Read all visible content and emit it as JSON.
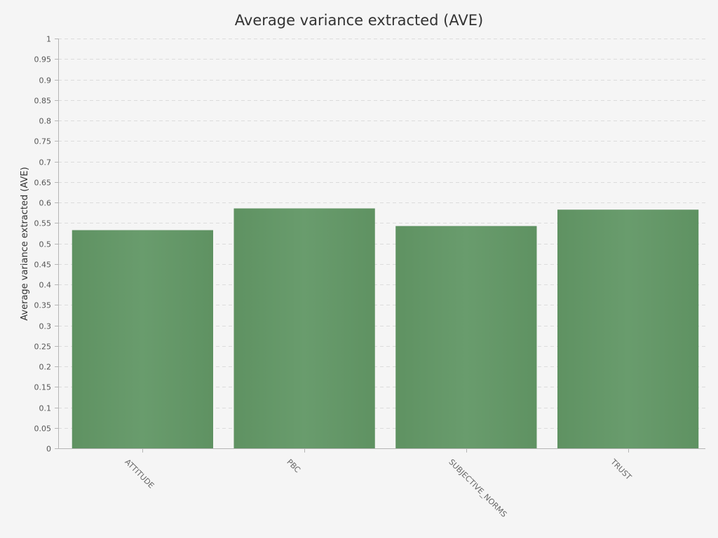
{
  "chart_data": {
    "type": "bar",
    "title": "Average variance extracted (AVE)",
    "xlabel": "",
    "ylabel": "Average variance extracted (AVE)",
    "categories": [
      "ATTITUDE",
      "PBC",
      "SUBJECTIVE_NORMS",
      "TRUST"
    ],
    "values": [
      0.532,
      0.585,
      0.542,
      0.582
    ],
    "ylim": [
      0,
      1
    ],
    "yticks": [
      0,
      0.05,
      0.1,
      0.15,
      0.2,
      0.25,
      0.3,
      0.35,
      0.4,
      0.45,
      0.5,
      0.55,
      0.6,
      0.65,
      0.7,
      0.75,
      0.8,
      0.85,
      0.9,
      0.95,
      1
    ],
    "ytick_labels": [
      "0",
      "0.05",
      "0.1",
      "0.15",
      "0.2",
      "0.25",
      "0.3",
      "0.35",
      "0.4",
      "0.45",
      "0.5",
      "0.55",
      "0.6",
      "0.65",
      "0.7",
      "0.75",
      "0.8",
      "0.85",
      "0.9",
      "0.95",
      "1"
    ],
    "grid": true,
    "legend": "none",
    "colors": {
      "bar": "#66996a",
      "bar_edge": "#5e9061",
      "background": "#f5f5f5",
      "grid": "#dcdcdc",
      "axis": "#b5b5b5"
    }
  }
}
